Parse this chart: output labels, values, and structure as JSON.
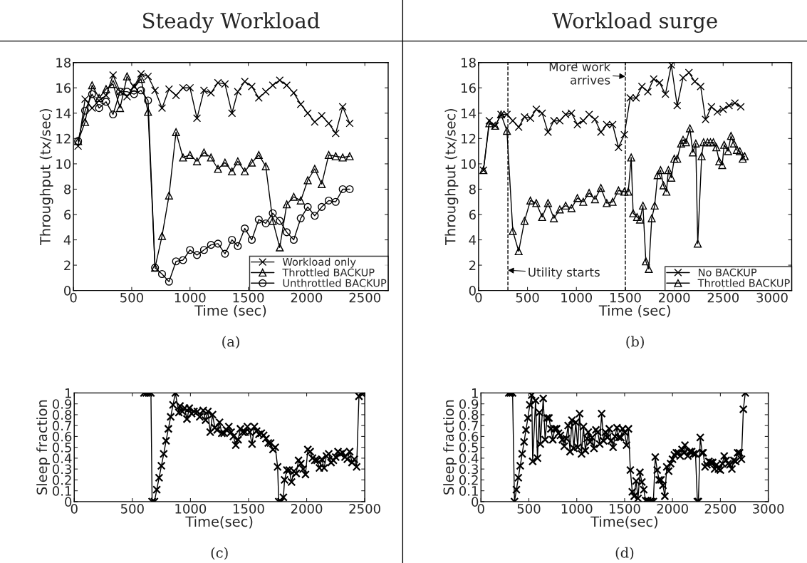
{
  "chart_data": [
    {
      "type": "line",
      "title": "Steady Workload",
      "xlabel": "Time (sec)",
      "ylabel": "Throughput (tx/sec)",
      "xlim": [
        0,
        2700
      ],
      "xticks": [
        0,
        500,
        1000,
        1500,
        2000,
        2500
      ],
      "ylim": [
        0,
        18
      ],
      "yticks": [
        0,
        2,
        4,
        6,
        8,
        10,
        12,
        14,
        16,
        18
      ],
      "legend": "bottom right",
      "annotations": [
        "(a)"
      ],
      "x": [
        40,
        100,
        160,
        220,
        280,
        340,
        400,
        460,
        520,
        580,
        640,
        700,
        760,
        820,
        880,
        940,
        1000,
        1060,
        1120,
        1180,
        1240,
        1300,
        1360,
        1410,
        1470,
        1530,
        1590,
        1650,
        1710,
        1770,
        1830,
        1890,
        1950,
        2010,
        2070,
        2130,
        2190,
        2250,
        2310,
        2370
      ],
      "series": [
        {
          "name": "Workload only",
          "color": "#000000",
          "marker": "cross",
          "values": [
            11.4,
            15.1,
            14.4,
            15.0,
            15.4,
            17.0,
            15.7,
            15.3,
            16.1,
            17.1,
            16.9,
            15.8,
            14.4,
            15.9,
            15.4,
            16.0,
            16.0,
            13.6,
            15.8,
            15.6,
            16.4,
            16.3,
            14.0,
            15.7,
            16.5,
            16.1,
            15.2,
            15.7,
            16.2,
            16.6,
            16.2,
            15.6,
            14.7,
            14.0,
            13.3,
            13.8,
            13.2,
            12.4,
            14.5,
            13.2
          ]
        },
        {
          "name": "Throttled BACKUP",
          "color": "#000000",
          "marker": "triangle",
          "values": [
            11.8,
            13.3,
            16.2,
            15.2,
            15.9,
            16.3,
            14.4,
            16.9,
            16.0,
            16.7,
            14.1,
            1.8,
            4.3,
            7.5,
            12.5,
            10.5,
            10.7,
            10.2,
            10.9,
            10.5,
            9.6,
            10.1,
            9.4,
            10.2,
            9.4,
            10.1,
            10.7,
            9.8,
            5.5,
            3.4,
            6.8,
            7.4,
            7.1,
            8.7,
            9.6,
            8.4,
            10.7,
            10.6,
            10.5,
            10.6
          ]
        },
        {
          "name": "Unthrottled BACKUP",
          "color": "#000000",
          "marker": "circle",
          "values": [
            11.8,
            14.2,
            15.5,
            14.4,
            14.9,
            13.9,
            15.7,
            15.7,
            15.5,
            15.8,
            15.0,
            1.8,
            1.3,
            0.7,
            2.3,
            2.4,
            3.2,
            2.8,
            3.2,
            3.6,
            3.7,
            2.9,
            4.0,
            3.5,
            4.9,
            4.0,
            5.6,
            5.3,
            6.1,
            5.5,
            4.6,
            4.0,
            5.7,
            6.6,
            5.9,
            6.6,
            7.1,
            7.0,
            8.0,
            8.0
          ]
        }
      ]
    },
    {
      "type": "line",
      "title": "Workload surge",
      "xlabel": "Time (sec)",
      "ylabel": "Throughput (tx/sec)",
      "xlim": [
        0,
        3200
      ],
      "xticks": [
        0,
        500,
        1000,
        1500,
        2000,
        2500,
        3000
      ],
      "ylim": [
        0,
        18
      ],
      "yticks": [
        0,
        2,
        4,
        6,
        8,
        10,
        12,
        14,
        16,
        18
      ],
      "legend": "bottom right",
      "ref_lines": [
        {
          "axis": "x",
          "value": 300,
          "color": "#000000",
          "line_style": "dashed"
        },
        {
          "axis": "x",
          "value": 1500,
          "color": "#000000",
          "line_style": "dashed"
        }
      ],
      "annotations": [
        {
          "text": "Utility starts",
          "x": 300,
          "y": 1.6
        },
        {
          "text": "More work\narrives",
          "x": 1500,
          "y": 16.9
        },
        "(b)"
      ],
      "series": [
        {
          "name": "No BACKUP",
          "color": "#000000",
          "marker": "cross",
          "x": [
            50,
            110,
            170,
            230,
            290,
            350,
            410,
            470,
            530,
            590,
            650,
            710,
            770,
            830,
            890,
            950,
            1010,
            1070,
            1130,
            1190,
            1250,
            1310,
            1370,
            1430,
            1490,
            1550,
            1610,
            1670,
            1730,
            1790,
            1850,
            1910,
            1970,
            2030,
            2090,
            2150,
            2210,
            2270,
            2320,
            2380,
            2440,
            2500,
            2560,
            2620,
            2680
          ],
          "values": [
            9.5,
            13.4,
            13.0,
            13.9,
            13.9,
            13.4,
            12.9,
            13.7,
            13.6,
            14.3,
            14.0,
            12.5,
            13.4,
            13.4,
            13.9,
            14.0,
            13.1,
            13.4,
            13.9,
            13.5,
            12.5,
            13.1,
            13.1,
            11.3,
            12.3,
            15.2,
            15.2,
            16.1,
            15.7,
            16.7,
            16.4,
            15.5,
            17.8,
            14.6,
            16.8,
            17.2,
            16.5,
            16.1,
            13.5,
            14.5,
            14.1,
            14.3,
            14.6,
            14.8,
            14.5
          ]
        },
        {
          "name": "Throttled BACKUP",
          "color": "#000000",
          "marker": "triangle",
          "x": [
            50,
            110,
            170,
            230,
            290,
            350,
            410,
            470,
            530,
            590,
            650,
            710,
            770,
            830,
            890,
            950,
            1010,
            1070,
            1130,
            1190,
            1250,
            1310,
            1370,
            1430,
            1490,
            1530,
            1560,
            1580,
            1620,
            1650,
            1680,
            1710,
            1740,
            1770,
            1800,
            1830,
            1860,
            1890,
            1920,
            1940,
            1970,
            2000,
            2030,
            2070,
            2090,
            2120,
            2160,
            2190,
            2220,
            2240,
            2280,
            2300,
            2340,
            2370,
            2400,
            2430,
            2460,
            2490,
            2510,
            2550,
            2580,
            2610,
            2640,
            2670,
            2700,
            2720
          ],
          "values": [
            9.5,
            13.2,
            13.0,
            13.9,
            12.6,
            4.7,
            3.1,
            5.5,
            7.1,
            6.9,
            5.8,
            6.9,
            5.7,
            6.4,
            6.7,
            6.5,
            7.3,
            7.0,
            7.7,
            7.2,
            8.1,
            6.9,
            7.0,
            7.9,
            7.8,
            7.8,
            10.5,
            6.1,
            5.8,
            5.6,
            6.7,
            2.3,
            1.7,
            5.7,
            6.7,
            9.1,
            9.5,
            8.3,
            7.8,
            9.5,
            8.9,
            10.4,
            10.4,
            11.6,
            11.9,
            11.7,
            12.8,
            10.9,
            11.6,
            3.7,
            10.6,
            11.7,
            11.7,
            11.7,
            11.7,
            11.3,
            10.2,
            9.9,
            11.5,
            11.0,
            12.2,
            11.6,
            11.1,
            11.0,
            10.4,
            10.6
          ]
        }
      ]
    },
    {
      "type": "line",
      "xlabel": "Time(sec)",
      "ylabel": "Sleep fraction",
      "xlim": [
        0,
        2500
      ],
      "xticks": [
        0,
        500,
        1000,
        1500,
        2000,
        2500
      ],
      "ylim": [
        0,
        1
      ],
      "yticks": [
        0,
        0.1,
        0.2,
        0.3,
        0.4,
        0.5,
        0.6,
        0.7,
        0.8,
        0.9,
        1
      ],
      "annotations": [
        "(c)"
      ],
      "series": [
        {
          "color": "#000000",
          "marker": "cross",
          "x": [
            600,
            620,
            640,
            660,
            670,
            690,
            710,
            730,
            750,
            770,
            790,
            810,
            830,
            850,
            870,
            900,
            910,
            930,
            950,
            970,
            990,
            1010,
            1030,
            1060,
            1080,
            1110,
            1130,
            1150,
            1170,
            1190,
            1210,
            1230,
            1250,
            1270,
            1290,
            1310,
            1330,
            1350,
            1370,
            1390,
            1410,
            1430,
            1450,
            1470,
            1490,
            1510,
            1530,
            1550,
            1570,
            1590,
            1610,
            1630,
            1650,
            1670,
            1690,
            1710,
            1730,
            1750,
            1760,
            1780,
            1800,
            1810,
            1830,
            1850,
            1870,
            1890,
            1910,
            1930,
            1950,
            1970,
            1990,
            2010,
            2030,
            2050,
            2070,
            2090,
            2110,
            2130,
            2150,
            2170,
            2190,
            2210,
            2230,
            2250,
            2270,
            2290,
            2310,
            2330,
            2350,
            2370,
            2390,
            2410,
            2430,
            2450,
            2470,
            2490
          ],
          "values": [
            1,
            1,
            1,
            1,
            0,
            0,
            0.11,
            0.22,
            0.33,
            0.44,
            0.56,
            0.67,
            0.78,
            0.89,
            1,
            0.82,
            0.88,
            0.83,
            0.86,
            0.76,
            0.86,
            0.81,
            0.83,
            0.83,
            0.78,
            0.84,
            0.75,
            0.83,
            0.64,
            0.8,
            0.68,
            0.66,
            0.73,
            0.63,
            0.63,
            0.66,
            0.69,
            0.64,
            0.6,
            0.52,
            0.57,
            0.67,
            0.64,
            0.64,
            0.69,
            0.64,
            0.53,
            0.69,
            0.65,
            0.62,
            0.63,
            0.61,
            0.58,
            0.54,
            0.54,
            0.48,
            0.5,
            0.32,
            0,
            0,
            0.04,
            0.2,
            0.29,
            0.29,
            0.18,
            0.28,
            0.26,
            0.38,
            0.35,
            0.3,
            0.25,
            0.48,
            0.46,
            0.4,
            0.38,
            0.38,
            0.31,
            0.39,
            0.31,
            0.42,
            0.44,
            0.36,
            0.38,
            0.41,
            0.46,
            0.44,
            0.45,
            0.41,
            0.39,
            0.46,
            0.36,
            0.39,
            0.32,
            0.97,
            1,
            1
          ]
        }
      ]
    },
    {
      "type": "line",
      "xlabel": "Time(sec)",
      "ylabel": "Sleep fraction",
      "xlim": [
        0,
        3000
      ],
      "xticks": [
        0,
        500,
        1000,
        1500,
        2000,
        2500,
        3000
      ],
      "ylim": [
        0,
        1
      ],
      "yticks": [
        0,
        0.1,
        0.2,
        0.3,
        0.4,
        0.5,
        0.6,
        0.7,
        0.8,
        0.9,
        1
      ],
      "annotations": [
        "(d)"
      ],
      "series": [
        {
          "color": "#000000",
          "marker": "cross",
          "x": [
            290,
            310,
            330,
            350,
            370,
            390,
            410,
            430,
            450,
            470,
            490,
            510,
            530,
            540,
            570,
            590,
            610,
            620,
            650,
            670,
            690,
            710,
            730,
            750,
            770,
            790,
            810,
            830,
            850,
            870,
            890,
            910,
            930,
            950,
            970,
            990,
            1010,
            1030,
            1050,
            1070,
            1090,
            1110,
            1120,
            1140,
            1160,
            1180,
            1200,
            1220,
            1240,
            1260,
            1280,
            1300,
            1320,
            1340,
            1360,
            1380,
            1400,
            1420,
            1440,
            1460,
            1480,
            1500,
            1520,
            1540,
            1560,
            1580,
            1600,
            1620,
            1640,
            1660,
            1680,
            1700,
            1720,
            1740,
            1760,
            1780,
            1800,
            1820,
            1840,
            1860,
            1880,
            1900,
            1920,
            1940,
            1960,
            1980,
            2000,
            2020,
            2040,
            2060,
            2080,
            2100,
            2120,
            2130,
            2160,
            2180,
            2200,
            2220,
            2240,
            2260,
            2270,
            2290,
            2310,
            2320,
            2340,
            2360,
            2380,
            2400,
            2420,
            2440,
            2460,
            2480,
            2500,
            2520,
            2540,
            2560,
            2580,
            2600,
            2620,
            2640,
            2660,
            2680,
            2700,
            2720,
            2740,
            2760
          ],
          "values": [
            1,
            1,
            1,
            0,
            0.11,
            0.22,
            0.33,
            0.44,
            0.55,
            0.66,
            0.77,
            0.89,
            0.98,
            0.37,
            0.93,
            0.4,
            0.82,
            0.53,
            0.95,
            0.57,
            0.77,
            0.77,
            0.67,
            0.57,
            0.67,
            0.67,
            0.63,
            0.61,
            0.57,
            0.51,
            0.58,
            0.7,
            0.46,
            0.75,
            0.49,
            0.73,
            0.5,
            0.81,
            0.44,
            0.69,
            0.47,
            0.58,
            0.64,
            0.55,
            0.59,
            0.49,
            0.66,
            0.64,
            0.53,
            0.81,
            0.56,
            0.64,
            0.59,
            0.67,
            0.56,
            0.5,
            0.6,
            0.68,
            0.59,
            0.59,
            0.67,
            0.64,
            0.52,
            0.67,
            0.29,
            0.09,
            0.05,
            0.19,
            0.03,
            0.27,
            0.18,
            0.11,
            0.01,
            0.01,
            0,
            0,
            0,
            0.41,
            0.29,
            0.2,
            0.2,
            0.15,
            0.05,
            0.32,
            0.28,
            0.35,
            0.39,
            0.43,
            0.45,
            0.45,
            0.42,
            0.48,
            0.45,
            0.52,
            0.42,
            0.46,
            0.46,
            0.44,
            0.44,
            0,
            0,
            0.59,
            0.45,
            0.45,
            0.32,
            0.34,
            0.37,
            0.36,
            0.36,
            0.3,
            0.34,
            0.3,
            0.29,
            0.35,
            0.42,
            0.38,
            0.35,
            0.34,
            0.3,
            0.38,
            0.37,
            0.45,
            0.45,
            0.39,
            0.85,
            1
          ]
        }
      ]
    }
  ]
}
